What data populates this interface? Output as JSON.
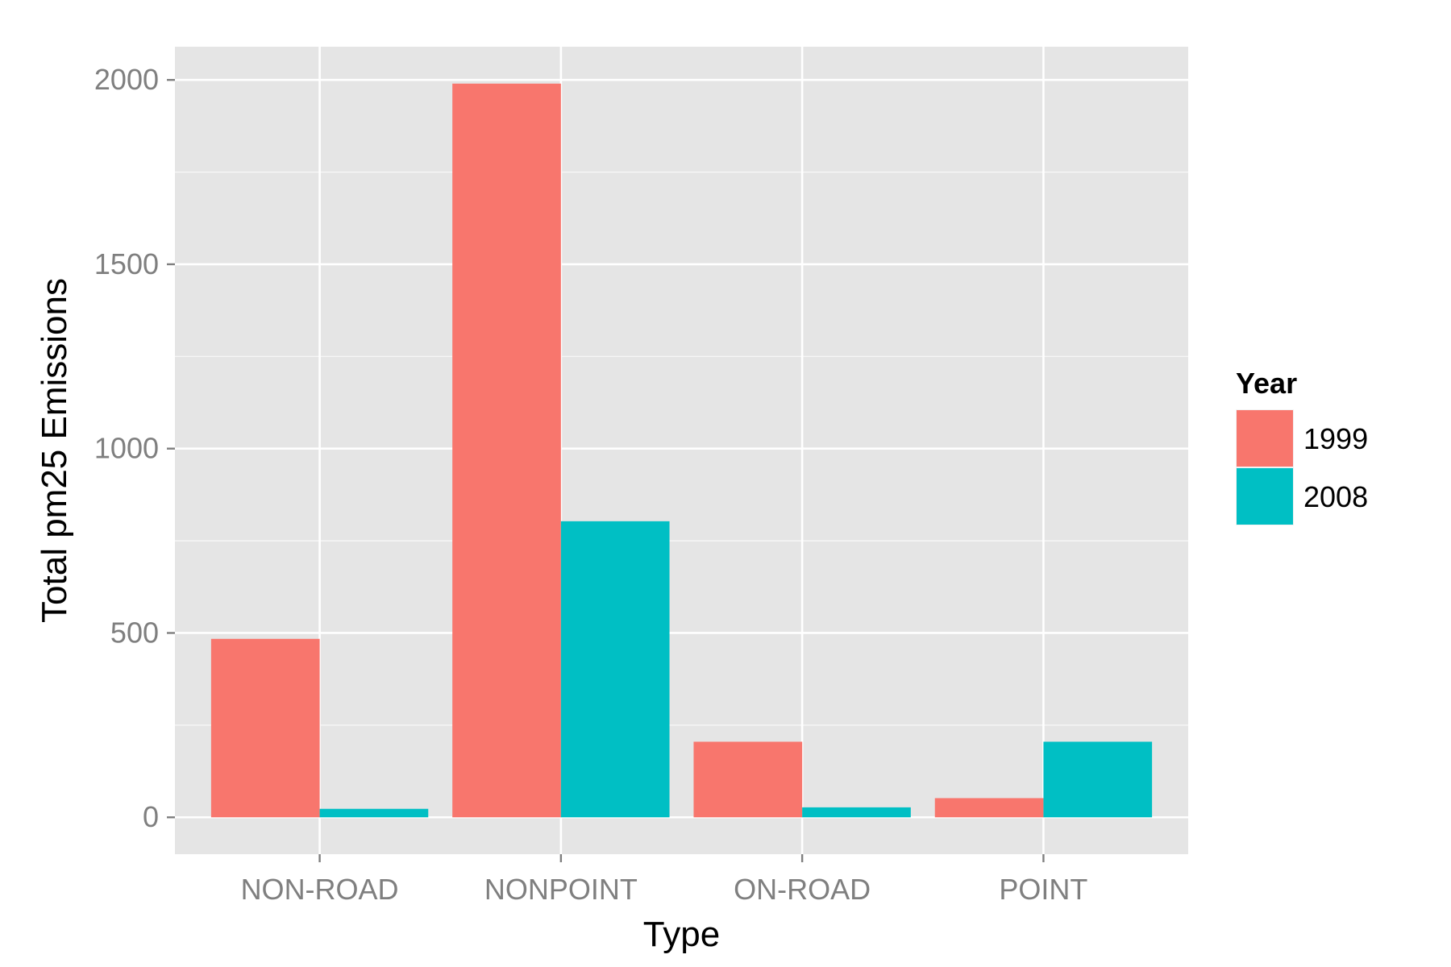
{
  "chart_data": {
    "type": "bar",
    "title": "",
    "xlabel": "Type",
    "ylabel": "Total pm25 Emissions",
    "categories": [
      "NON-ROAD",
      "NONPOINT",
      "ON-ROAD",
      "POINT"
    ],
    "series": [
      {
        "name": "1999",
        "color": "#F8766D",
        "values": [
          484,
          1990,
          205,
          52
        ]
      },
      {
        "name": "2008",
        "color": "#00BFC4",
        "values": [
          23,
          803,
          27,
          205
        ]
      }
    ],
    "ylim": [
      -100,
      2090
    ],
    "yticks": [
      0,
      500,
      1000,
      1500,
      2000
    ],
    "ytick_labels": [
      "0",
      "500",
      "1000",
      "1500",
      "2000"
    ],
    "grid": true,
    "panel_color": "#E5E5E5",
    "grid_color": "#FFFFFF",
    "legend": {
      "title": "Year",
      "position": "right"
    }
  }
}
